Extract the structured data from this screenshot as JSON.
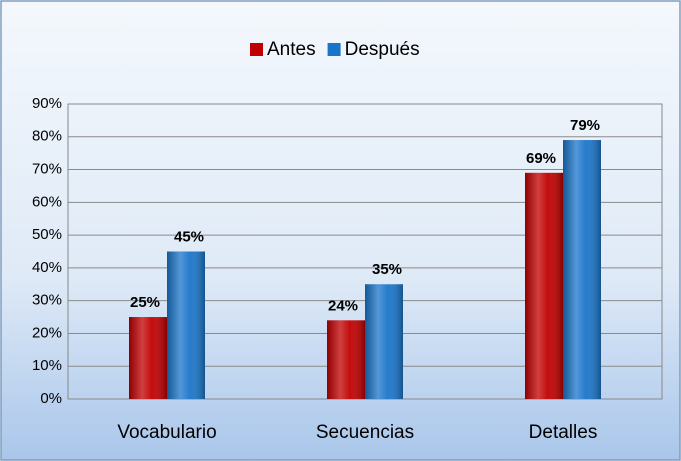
{
  "chart_data": {
    "type": "bar",
    "categories": [
      "Vocabulario",
      "Secuencias",
      "Detalles"
    ],
    "series": [
      {
        "name": "Antes",
        "color": "#c00000",
        "values": [
          25,
          24,
          69
        ],
        "value_labels": [
          "25%",
          "24%",
          "69%"
        ]
      },
      {
        "name": "Después",
        "color": "#1a75c9",
        "values": [
          45,
          35,
          79
        ],
        "value_labels": [
          "45%",
          "35%",
          "79%"
        ]
      }
    ],
    "ylim": [
      0,
      90
    ],
    "yticks": [
      {
        "value": 0,
        "label": "0%"
      },
      {
        "value": 10,
        "label": "10%"
      },
      {
        "value": 20,
        "label": "20%"
      },
      {
        "value": 30,
        "label": "30%"
      },
      {
        "value": 40,
        "label": "40%"
      },
      {
        "value": 50,
        "label": "50%"
      },
      {
        "value": 60,
        "label": "60%"
      },
      {
        "value": 70,
        "label": "70%"
      },
      {
        "value": 80,
        "label": "80%"
      },
      {
        "value": 90,
        "label": "90%"
      }
    ],
    "grid": true,
    "legend": "top"
  }
}
